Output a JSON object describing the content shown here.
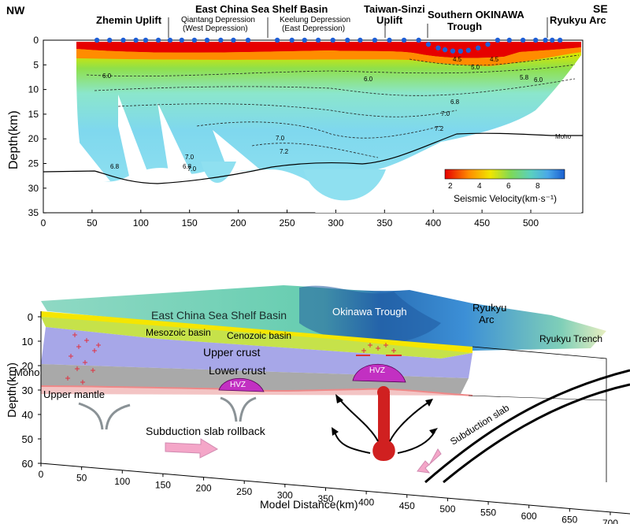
{
  "top_panel": {
    "direction_left": "NW",
    "direction_right": "SE",
    "regions": [
      {
        "name": "Zhemin Uplift",
        "sub1": "",
        "sub2": ""
      },
      {
        "name": "East China Sea Shelf Basin",
        "sub1": "",
        "sub2": ""
      },
      {
        "name": "",
        "sub1": "Qiantang Depression",
        "sub2": "(West Depression)"
      },
      {
        "name": "",
        "sub1": "Keelung Depression",
        "sub2": "(East Depression)"
      },
      {
        "name": "Taiwan-Sinzi",
        "sub1": "Uplift",
        "sub2": ""
      },
      {
        "name": "Southern OKINAWA",
        "sub1": "Trough",
        "sub2": ""
      },
      {
        "name": "Ryukyu Arc",
        "sub1": "",
        "sub2": ""
      }
    ],
    "y_axis_label": "Depth(km)",
    "y_ticks": [
      0,
      5,
      10,
      15,
      20,
      25,
      30,
      35
    ],
    "x_ticks": [
      0,
      50,
      100,
      150,
      200,
      250,
      300,
      350,
      400,
      450,
      500
    ],
    "moho_label": "Moho",
    "contour_labels": [
      "6.0",
      "6.0",
      "6.8",
      "7.0",
      "7.0",
      "7.2",
      "6.8",
      "7.0",
      "7.2",
      "4.5",
      "5.0",
      "5.8",
      "6.0",
      "6.8",
      "7.0",
      "4.5"
    ],
    "colorbar": {
      "ticks": [
        "2",
        "4",
        "6",
        "8"
      ],
      "label": "Seismic Velocity(km·s⁻¹)",
      "colors": [
        "#e60000",
        "#ff8c00",
        "#f0e600",
        "#7ed957",
        "#5ad0c0",
        "#4aa8e8",
        "#1a5fd0"
      ]
    },
    "station_color": "#1f5fd6"
  },
  "bottom_panel": {
    "labels": {
      "shelf_basin": "East China Sea Shelf Basin",
      "okinawa": "Okinawa Trough",
      "ryukyu_arc_1": "Ryukyu",
      "ryukyu_arc_2": "Arc",
      "ryukyu_trench": "Ryukyu Trench",
      "mesozoic": "Mesozoic basin",
      "cenozoic": "Cenozoic basin",
      "upper_crust": "Upper crust",
      "lower_crust": "Lower crust",
      "moho": "Moho",
      "upper_mantle": "Upper mantle",
      "hvz1": "HVZ",
      "hvz2": "HVZ",
      "rollback": "Subduction slab rollback",
      "slab": "Subduction   slab"
    },
    "y_axis_label": "Depth(km)",
    "y_ticks": [
      0,
      10,
      20,
      30,
      40,
      50,
      60
    ],
    "x_axis_label": "Model Distance(km)",
    "x_ticks": [
      0,
      50,
      100,
      150,
      200,
      250,
      300,
      350,
      400,
      450,
      500,
      550,
      600,
      650,
      700
    ]
  }
}
